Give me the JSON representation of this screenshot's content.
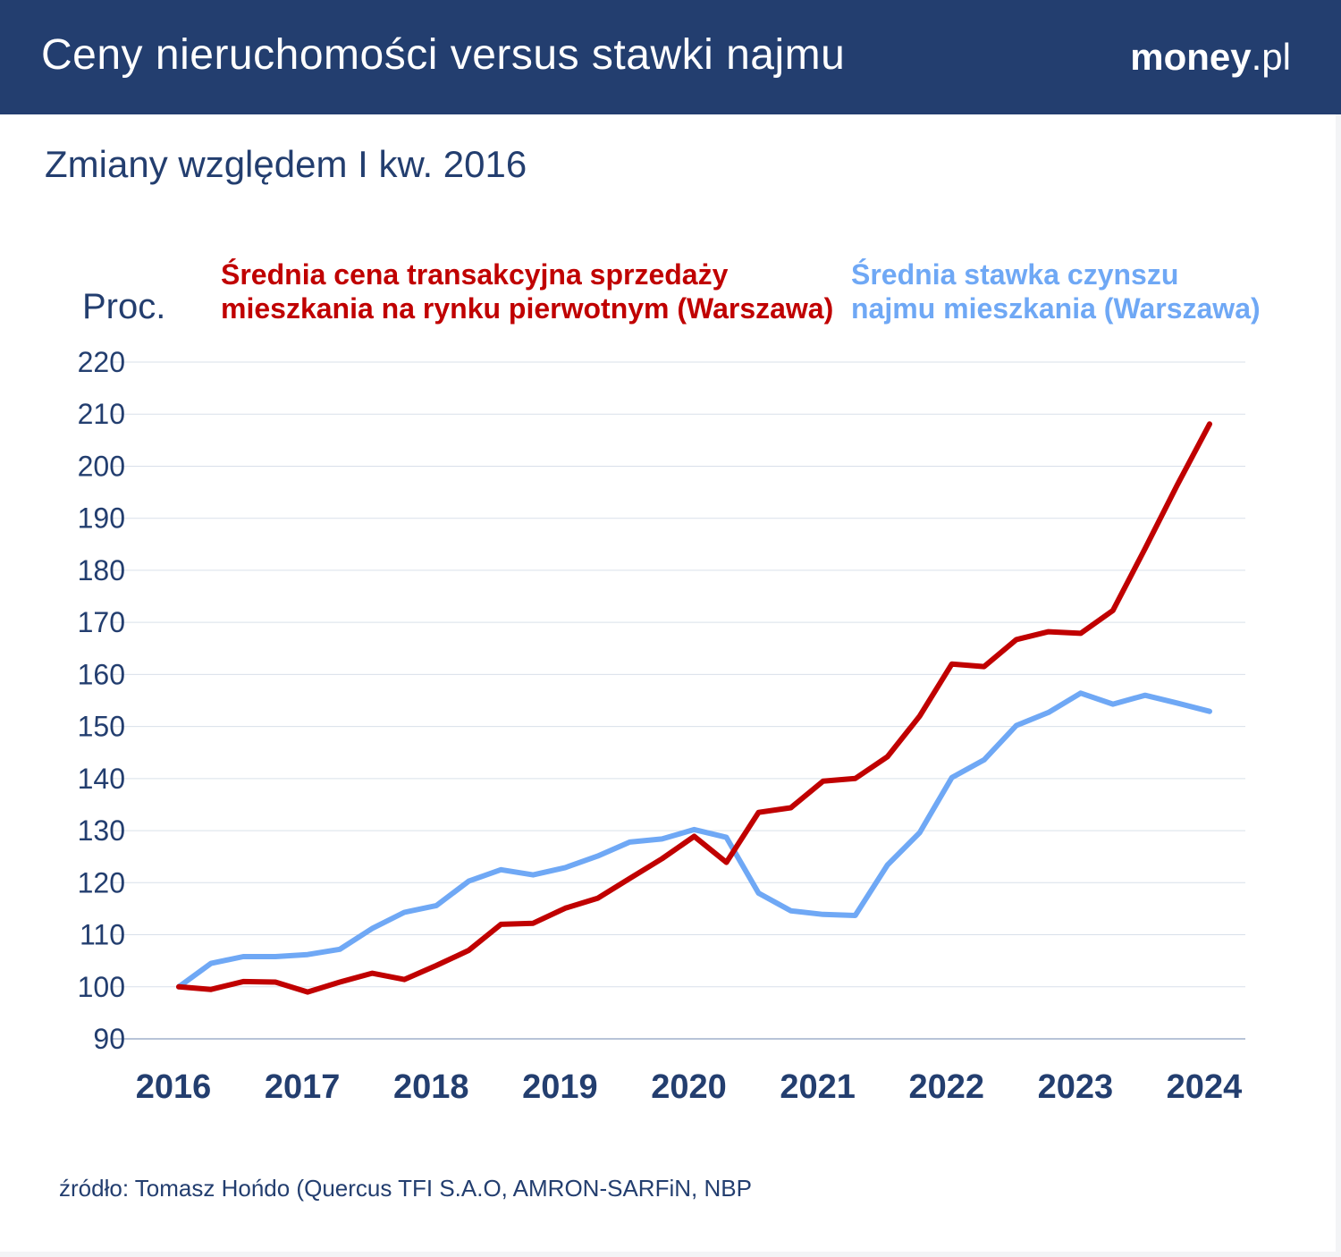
{
  "header": {
    "title": "Ceny nieruchomości versus stawki najmu",
    "logo_main": "money",
    "logo_suffix": ".pl"
  },
  "subtitle": "Zmiany względem I kw. 2016",
  "source": "źródło: Tomasz Hońdo (Quercus TFI S.A.O, AMRON-SARFiN, NBP",
  "chart_data": {
    "type": "line",
    "ylabel": "Proc.",
    "ylim": [
      90,
      220
    ],
    "yticks": [
      90,
      100,
      110,
      120,
      130,
      140,
      150,
      160,
      170,
      180,
      190,
      200,
      210,
      220
    ],
    "xticks": [
      "2016",
      "2017",
      "2018",
      "2019",
      "2020",
      "2021",
      "2022",
      "2023",
      "2024"
    ],
    "grid": true,
    "x_start": "2016 Q1",
    "x_frequency": "quarterly",
    "series": [
      {
        "name_line1": "Średnia cena transakcyjna sprzedaży",
        "name_line2": "mieszkania na rynku pierwotnym (Warszawa)",
        "color": "#c00000",
        "values": [
          100,
          99.5,
          101,
          100.9,
          99,
          100.9,
          102.6,
          101.4,
          104.1,
          107,
          112,
          112.2,
          115.1,
          117,
          120.8,
          124.6,
          128.9,
          123.9,
          133.5,
          134.4,
          139.5,
          140,
          144.2,
          152,
          162,
          161.5,
          166.7,
          168.2,
          167.9,
          172.3,
          184.2,
          196.4,
          208.1
        ]
      },
      {
        "name_line1": "Średnia stawka czynszu",
        "name_line2": "najmu mieszkania (Warszawa)",
        "color": "#6fa8f5",
        "values": [
          100,
          104.5,
          105.8,
          105.8,
          106.2,
          107.2,
          111.2,
          114.3,
          115.6,
          120.3,
          122.5,
          121.5,
          122.9,
          125.1,
          127.8,
          128.4,
          130.2,
          128.7,
          118,
          114.6,
          113.9,
          113.7,
          123.4,
          129.6,
          140.2,
          143.6,
          150.2,
          152.7,
          156.4,
          154.3,
          156,
          154.5,
          152.9
        ]
      }
    ]
  }
}
